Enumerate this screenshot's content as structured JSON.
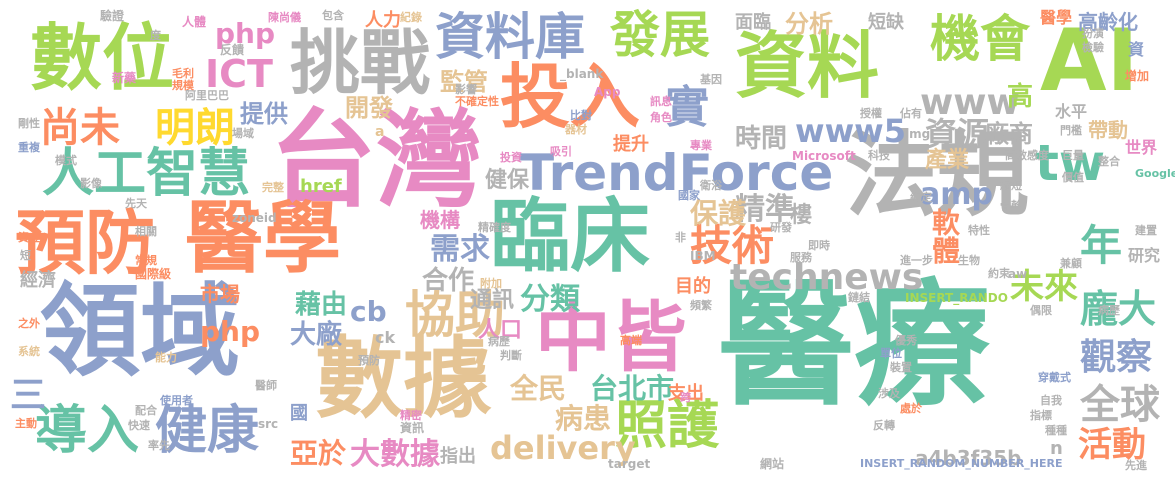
{
  "palette": [
    "#66c2a5",
    "#fc8d62",
    "#8da0cb",
    "#e78ac3",
    "#a6d854",
    "#e5c494",
    "#b3b3b3",
    "#ffd92f"
  ],
  "words": [
    {
      "text": "醫療",
      "color": "#66c2a5"
    },
    {
      "text": "台灣",
      "color": "#e78ac3"
    },
    {
      "text": "法規",
      "color": "#b3b3b3"
    },
    {
      "text": "領域",
      "color": "#8da0cb"
    },
    {
      "text": "AI",
      "color": "#a6d854"
    },
    {
      "text": "資料",
      "color": "#a6d854"
    },
    {
      "text": "數據",
      "color": "#e5c494"
    },
    {
      "text": "醫學",
      "color": "#fc8d62"
    },
    {
      "text": "臨床",
      "color": "#66c2a5"
    },
    {
      "text": "預防",
      "color": "#fc8d62"
    },
    {
      "text": "數位",
      "color": "#a6d854"
    },
    {
      "text": "投入",
      "color": "#fc8d62"
    },
    {
      "text": "挑戰",
      "color": "#b3b3b3"
    },
    {
      "text": "中皆",
      "color": "#e78ac3"
    },
    {
      "text": "TrendForce",
      "color": "#8da0cb"
    },
    {
      "text": "資料庫",
      "color": "#8da0cb"
    },
    {
      "text": "發展",
      "color": "#a6d854"
    },
    {
      "text": "人工智慧",
      "color": "#66c2a5"
    },
    {
      "text": "協助",
      "color": "#e5c494"
    },
    {
      "text": "機會",
      "color": "#a6d854"
    },
    {
      "text": "健康",
      "color": "#8da0cb"
    },
    {
      "text": "導入",
      "color": "#66c2a5"
    },
    {
      "text": "照護",
      "color": "#a6d854"
    },
    {
      "text": "technews",
      "color": "#b3b3b3"
    },
    {
      "text": "技術",
      "color": "#fc8d62"
    },
    {
      "text": "尚未",
      "color": "#fc8d62"
    },
    {
      "text": "明朗",
      "color": "#ffd92f"
    },
    {
      "text": "tw",
      "color": "#66c2a5"
    },
    {
      "text": "實",
      "color": "#8da0cb"
    },
    {
      "text": "www",
      "color": "#b3b3b3"
    },
    {
      "text": "www5",
      "color": "#8da0cb"
    },
    {
      "text": "資源",
      "color": "#b3b3b3"
    },
    {
      "text": "廠商",
      "color": "#b3b3b3"
    },
    {
      "text": "ICT",
      "color": "#e78ac3"
    },
    {
      "text": "php",
      "color": "#e78ac3"
    },
    {
      "text": "監管",
      "color": "#e5c494"
    },
    {
      "text": "提供",
      "color": "#8da0cb"
    },
    {
      "text": "開發",
      "color": "#e5c494"
    },
    {
      "text": "分析",
      "color": "#e5c494"
    },
    {
      "text": "時間",
      "color": "#b3b3b3"
    },
    {
      "text": "精準",
      "color": "#b3b3b3"
    },
    {
      "text": "需求",
      "color": "#8da0cb"
    },
    {
      "text": "分類",
      "color": "#66c2a5"
    },
    {
      "text": "保護",
      "color": "#e5c494"
    },
    {
      "text": "健保",
      "color": "#b3b3b3"
    },
    {
      "text": "amp",
      "color": "#8da0cb"
    },
    {
      "text": "年",
      "color": "#66c2a5"
    },
    {
      "text": "未來",
      "color": "#a6d854"
    },
    {
      "text": "軟體",
      "color": "#fc8d62"
    },
    {
      "text": "龐大",
      "color": "#66c2a5"
    },
    {
      "text": "觀察",
      "color": "#8da0cb"
    },
    {
      "text": "全球",
      "color": "#b3b3b3"
    },
    {
      "text": "活動",
      "color": "#fc8d62"
    },
    {
      "text": "delivery",
      "color": "#e5c494"
    },
    {
      "text": "病患",
      "color": "#e5c494"
    },
    {
      "text": "大數據",
      "color": "#e78ac3"
    },
    {
      "text": "亞於",
      "color": "#fc8d62"
    },
    {
      "text": "台北市",
      "color": "#66c2a5"
    },
    {
      "text": "全民",
      "color": "#e5c494"
    },
    {
      "text": "藉由",
      "color": "#66c2a5"
    },
    {
      "text": "大廠",
      "color": "#8da0cb"
    },
    {
      "text": "cb",
      "color": "#8da0cb"
    },
    {
      "text": "合作",
      "color": "#b3b3b3"
    },
    {
      "text": "市場",
      "color": "#fc8d62"
    },
    {
      "text": "php",
      "color": "#fc8d62"
    },
    {
      "text": "三",
      "color": "#8da0cb"
    },
    {
      "text": "人口",
      "color": "#e78ac3"
    },
    {
      "text": "通訊",
      "color": "#b3b3b3"
    },
    {
      "text": "a4b3f35b",
      "color": "#b3b3b3"
    },
    {
      "text": "產業",
      "color": "#e5c494"
    },
    {
      "text": "帶動",
      "color": "#e5c494"
    },
    {
      "text": "世界",
      "color": "#e78ac3"
    },
    {
      "text": "高齡化",
      "color": "#8da0cb"
    },
    {
      "text": "研究",
      "color": "#b3b3b3"
    },
    {
      "text": "水平",
      "color": "#b3b3b3"
    },
    {
      "text": "高",
      "color": "#a6d854"
    },
    {
      "text": "樓",
      "color": "#b3b3b3"
    },
    {
      "text": "醫學",
      "color": "#fc8d62"
    },
    {
      "text": "短缺",
      "color": "#b3b3b3"
    },
    {
      "text": "面臨",
      "color": "#b3b3b3"
    },
    {
      "text": "人力",
      "color": "#fc8d62"
    },
    {
      "text": "href",
      "color": "#a6d854"
    },
    {
      "text": "機構",
      "color": "#e78ac3"
    },
    {
      "text": "提升",
      "color": "#fc8d62"
    },
    {
      "text": "目的",
      "color": "#fc8d62"
    },
    {
      "text": "支出",
      "color": "#fc8d62"
    },
    {
      "text": "指出",
      "color": "#b3b3b3"
    },
    {
      "text": "經濟",
      "color": "#b3b3b3"
    },
    {
      "text": "國際級",
      "color": "#fc8d62"
    },
    {
      "text": "INSERT_RANDOM_NUMBER_HERE",
      "color": "#8da0cb"
    },
    {
      "text": "target",
      "color": "#b3b3b3"
    },
    {
      "text": "資訊",
      "color": "#b3b3b3"
    },
    {
      "text": "網站",
      "color": "#b3b3b3"
    },
    {
      "text": "n",
      "color": "#b3b3b3"
    },
    {
      "text": "IBM",
      "color": "#b3b3b3"
    },
    {
      "text": "Google",
      "color": "#66c2a5"
    },
    {
      "text": "Microsoft",
      "color": "#e78ac3"
    },
    {
      "text": "App",
      "color": "#e78ac3"
    },
    {
      "text": "img",
      "color": "#b3b3b3"
    },
    {
      "text": "_blank",
      "color": "#b3b3b3"
    },
    {
      "text": "zoneid",
      "color": "#b3b3b3"
    },
    {
      "text": "ck",
      "color": "#b3b3b3"
    },
    {
      "text": "aw",
      "color": "#b3b3b3"
    },
    {
      "text": "src",
      "color": "#b3b3b3"
    },
    {
      "text": "a",
      "color": "#e5c494"
    },
    {
      "text": "INSERT_RANDO",
      "color": "#a6d854"
    },
    {
      "text": "資",
      "color": "#8da0cb"
    },
    {
      "text": "增加",
      "color": "#fc8d62"
    },
    {
      "text": "驗證",
      "color": "#b3b3b3"
    },
    {
      "text": "人體",
      "color": "#e78ac3"
    },
    {
      "text": "度",
      "color": "#b3b3b3"
    },
    {
      "text": "新藥",
      "color": "#e78ac3"
    },
    {
      "text": "反饋",
      "color": "#b3b3b3"
    },
    {
      "text": "毛利",
      "color": "#fc8d62"
    },
    {
      "text": "規模",
      "color": "#fc8d62"
    },
    {
      "text": "阿里巴巴",
      "color": "#b3b3b3"
    },
    {
      "text": "包含",
      "color": "#b3b3b3"
    },
    {
      "text": "紀錄",
      "color": "#e5c494"
    },
    {
      "text": "基因",
      "color": "#b3b3b3"
    },
    {
      "text": "不確定性",
      "color": "#fc8d62"
    },
    {
      "text": "比對",
      "color": "#8da0cb"
    },
    {
      "text": "器材",
      "color": "#e5c494"
    },
    {
      "text": "角色",
      "color": "#e78ac3"
    },
    {
      "text": "訊息",
      "color": "#e78ac3"
    },
    {
      "text": "吸引",
      "color": "#e78ac3"
    },
    {
      "text": "投資",
      "color": "#e78ac3"
    },
    {
      "text": "專業",
      "color": "#e78ac3"
    },
    {
      "text": "模式",
      "color": "#b3b3b3"
    },
    {
      "text": "影像",
      "color": "#b3b3b3"
    },
    {
      "text": "剛性",
      "color": "#b3b3b3"
    },
    {
      "text": "場域",
      "color": "#b3b3b3"
    },
    {
      "text": "重複",
      "color": "#8da0cb"
    },
    {
      "text": "完整",
      "color": "#e5c494"
    },
    {
      "text": "先天",
      "color": "#b3b3b3"
    },
    {
      "text": "相關",
      "color": "#b3b3b3"
    },
    {
      "text": "資金",
      "color": "#fc8d62"
    },
    {
      "text": "短",
      "color": "#b3b3b3"
    },
    {
      "text": "常規",
      "color": "#fc8d62"
    },
    {
      "text": "之外",
      "color": "#fc8d62"
    },
    {
      "text": "系統",
      "color": "#e5c494"
    },
    {
      "text": "能力",
      "color": "#e5c494"
    },
    {
      "text": "主動",
      "color": "#fc8d62"
    },
    {
      "text": "配合",
      "color": "#b3b3b3"
    },
    {
      "text": "快速",
      "color": "#b3b3b3"
    },
    {
      "text": "使用者",
      "color": "#8da0cb"
    },
    {
      "text": "率先",
      "color": "#b3b3b3"
    },
    {
      "text": "醫師",
      "color": "#b3b3b3"
    },
    {
      "text": "國",
      "color": "#8da0cb"
    },
    {
      "text": "精密",
      "color": "#e78ac3"
    },
    {
      "text": "病歷",
      "color": "#b3b3b3"
    },
    {
      "text": "頻繁",
      "color": "#b3b3b3"
    },
    {
      "text": "判斷",
      "color": "#b3b3b3"
    },
    {
      "text": "預防",
      "color": "#b3b3b3"
    },
    {
      "text": "附加",
      "color": "#e5c494"
    },
    {
      "text": "高端",
      "color": "#fc8d62"
    },
    {
      "text": "精確度",
      "color": "#b3b3b3"
    },
    {
      "text": "科技",
      "color": "#b3b3b3"
    },
    {
      "text": "約定",
      "color": "#b3b3b3"
    },
    {
      "text": "國家",
      "color": "#8da0cb"
    },
    {
      "text": "衛浴",
      "color": "#b3b3b3"
    },
    {
      "text": "服務",
      "color": "#b3b3b3"
    },
    {
      "text": "非",
      "color": "#b3b3b3"
    },
    {
      "text": "即時",
      "color": "#b3b3b3"
    },
    {
      "text": "進一步",
      "color": "#b3b3b3"
    },
    {
      "text": "生物",
      "color": "#b3b3b3"
    },
    {
      "text": "約束",
      "color": "#b3b3b3"
    },
    {
      "text": "特性",
      "color": "#b3b3b3"
    },
    {
      "text": "建置",
      "color": "#b3b3b3"
    },
    {
      "text": "偶限",
      "color": "#b3b3b3"
    },
    {
      "text": "優秀",
      "color": "#b3b3b3"
    },
    {
      "text": "鏈結",
      "color": "#b3b3b3"
    },
    {
      "text": "單位",
      "color": "#8da0cb"
    },
    {
      "text": "裝置",
      "color": "#b3b3b3"
    },
    {
      "text": "穿戴式",
      "color": "#8da0cb"
    },
    {
      "text": "跨",
      "color": "#e78ac3"
    },
    {
      "text": "自我",
      "color": "#b3b3b3"
    },
    {
      "text": "處於",
      "color": "#fc8d62"
    },
    {
      "text": "涉及",
      "color": "#b3b3b3"
    },
    {
      "text": "反轉",
      "color": "#b3b3b3"
    },
    {
      "text": "種種",
      "color": "#b3b3b3"
    },
    {
      "text": "指標",
      "color": "#b3b3b3"
    },
    {
      "text": "先進",
      "color": "#b3b3b3"
    },
    {
      "text": "價值",
      "color": "#b3b3b3"
    },
    {
      "text": "整合",
      "color": "#b3b3b3"
    },
    {
      "text": "高敏感度",
      "color": "#b3b3b3"
    },
    {
      "text": "巨量",
      "color": "#b3b3b3"
    },
    {
      "text": "檢驗",
      "color": "#b3b3b3"
    },
    {
      "text": "扮演",
      "color": "#b3b3b3"
    },
    {
      "text": "佔有",
      "color": "#b3b3b3"
    },
    {
      "text": "授權",
      "color": "#b3b3b3"
    },
    {
      "text": "門檻",
      "color": "#b3b3b3"
    },
    {
      "text": "研發",
      "color": "#b3b3b3"
    },
    {
      "text": "兼顧",
      "color": "#b3b3b3"
    },
    {
      "text": "病歷",
      "color": "#b3b3b3"
    },
    {
      "text": "骨幹",
      "color": "#b3b3b3"
    },
    {
      "text": "縮短",
      "color": "#b3b3b3"
    },
    {
      "text": "陳尚儀",
      "color": "#e78ac3"
    },
    {
      "text": "影響",
      "color": "#b3b3b3"
    }
  ]
}
